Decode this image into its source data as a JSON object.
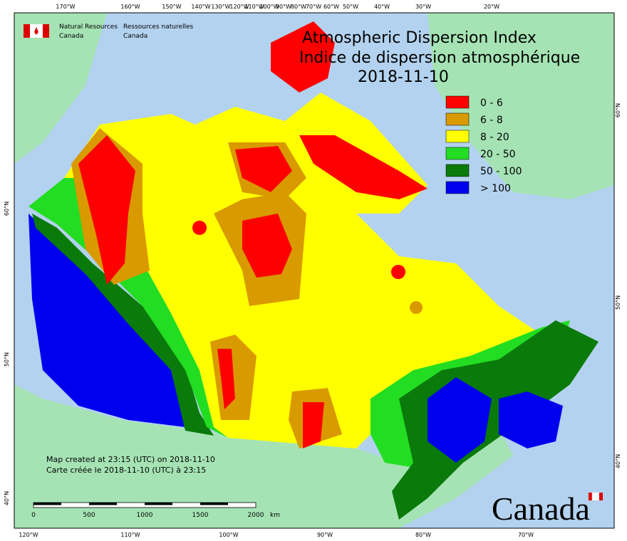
{
  "header": {
    "agency_en": [
      "Natural Resources",
      "Canada"
    ],
    "agency_fr": [
      "Ressources naturelles",
      "Canada"
    ],
    "title": "Atmospheric Dispersion Index",
    "title_fr": "Indice de dispersion atmosphérique",
    "date": "2018-11-10"
  },
  "legend": [
    {
      "label": "0 - 6",
      "color": "#ff0000"
    },
    {
      "label": "6 - 8",
      "color": "#d99a00"
    },
    {
      "label": "8 - 20",
      "color": "#ffff00"
    },
    {
      "label": "20 - 50",
      "color": "#22dd22"
    },
    {
      "label": "50 - 100",
      "color": "#0a7a0a"
    },
    {
      "label": "> 100",
      "color": "#0000ee"
    }
  ],
  "footer": [
    "Map created at 23:15 (UTC) on 2018-11-10",
    "Carte créée le 2018-11-10 (UTC) à 23:15"
  ],
  "scale_bar": {
    "labels": [
      "0",
      "500",
      "1000",
      "1500",
      "2000"
    ],
    "unit": "km"
  },
  "wordmark": "Canada",
  "graticule": {
    "top": [
      "170°W",
      "160°W",
      "150°W",
      "140°W",
      "130°W",
      "120°W",
      "110°W",
      "100°W",
      "90°W",
      "80°W",
      "70°W",
      "60°W",
      "50°W",
      "40°W",
      "30°W",
      "20°W"
    ],
    "bottom": [
      "120°W",
      "110°W",
      "100°W",
      "90°W",
      "80°W",
      "70°W"
    ],
    "left": [
      "60°N",
      "50°N",
      "40°N"
    ],
    "right": [
      "60°N",
      "50°N",
      "40°N"
    ]
  }
}
